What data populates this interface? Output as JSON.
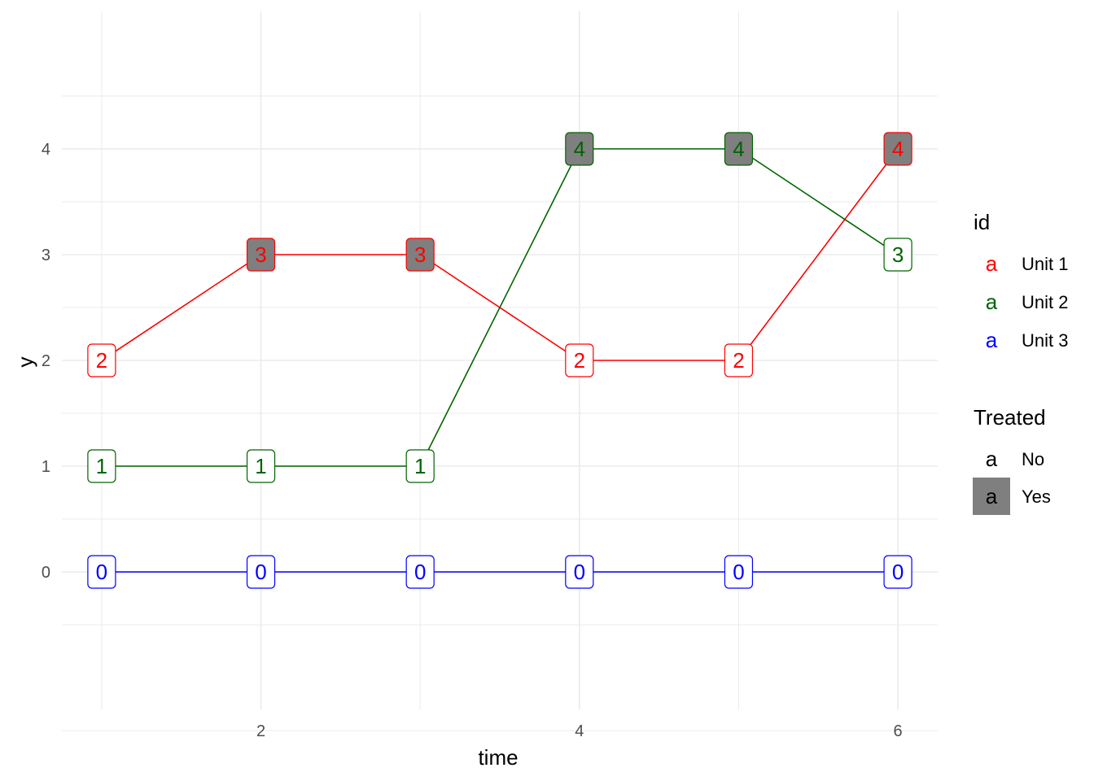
{
  "chart_data": {
    "type": "line",
    "title": "",
    "xlabel": "time",
    "ylabel": "y",
    "xlim": [
      0.75,
      6.25
    ],
    "ylim": [
      -1.3,
      5.3
    ],
    "x_ticks": [
      2,
      4,
      6
    ],
    "y_ticks": [
      0,
      1,
      2,
      3,
      4
    ],
    "grid": true,
    "legend_position": "right",
    "series": [
      {
        "name": "Unit 1",
        "color": "#ff0000",
        "points": [
          {
            "x": 1,
            "y": 2,
            "label": "2",
            "treated": "No"
          },
          {
            "x": 2,
            "y": 3,
            "label": "3",
            "treated": "Yes"
          },
          {
            "x": 3,
            "y": 3,
            "label": "3",
            "treated": "Yes"
          },
          {
            "x": 4,
            "y": 2,
            "label": "2",
            "treated": "No"
          },
          {
            "x": 5,
            "y": 2,
            "label": "2",
            "treated": "No"
          },
          {
            "x": 6,
            "y": 4,
            "label": "4",
            "treated": "Yes"
          }
        ]
      },
      {
        "name": "Unit 2",
        "color": "#006400",
        "points": [
          {
            "x": 1,
            "y": 1,
            "label": "1",
            "treated": "No"
          },
          {
            "x": 2,
            "y": 1,
            "label": "1",
            "treated": "No"
          },
          {
            "x": 3,
            "y": 1,
            "label": "1",
            "treated": "No"
          },
          {
            "x": 4,
            "y": 4,
            "label": "4",
            "treated": "Yes"
          },
          {
            "x": 5,
            "y": 4,
            "label": "4",
            "treated": "Yes"
          },
          {
            "x": 6,
            "y": 3,
            "label": "3",
            "treated": "No"
          }
        ]
      },
      {
        "name": "Unit 3",
        "color": "#0000ff",
        "points": [
          {
            "x": 1,
            "y": 0,
            "label": "0",
            "treated": "No"
          },
          {
            "x": 2,
            "y": 0,
            "label": "0",
            "treated": "No"
          },
          {
            "x": 3,
            "y": 0,
            "label": "0",
            "treated": "No"
          },
          {
            "x": 4,
            "y": 0,
            "label": "0",
            "treated": "No"
          },
          {
            "x": 5,
            "y": 0,
            "label": "0",
            "treated": "No"
          },
          {
            "x": 6,
            "y": 0,
            "label": "0",
            "treated": "No"
          }
        ]
      }
    ],
    "legends": [
      {
        "title": "id",
        "key_glyph": "a",
        "entries": [
          {
            "label": "Unit 1",
            "color": "#ff0000"
          },
          {
            "label": "Unit 2",
            "color": "#006400"
          },
          {
            "label": "Unit 3",
            "color": "#0000ff"
          }
        ]
      },
      {
        "title": "Treated",
        "key_glyph": "a",
        "entries": [
          {
            "label": "No",
            "fill": "#ffffff"
          },
          {
            "label": "Yes",
            "fill": "#7f7f7f"
          }
        ]
      }
    ],
    "treated_fill": {
      "Yes": "#7f7f7f",
      "No": "#ffffff"
    },
    "gridline_color": "#ebebeb"
  }
}
